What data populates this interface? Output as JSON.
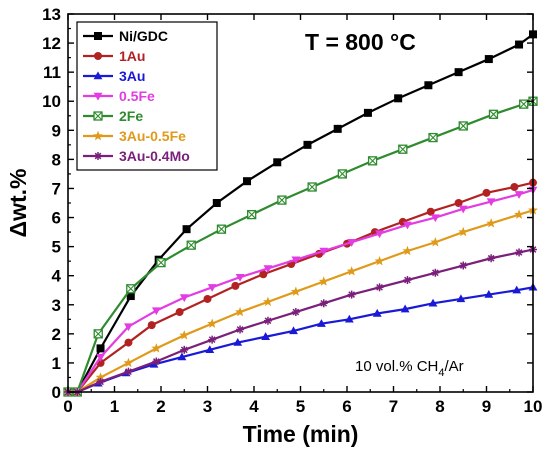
{
  "chart_data": {
    "type": "line",
    "title": "",
    "xlabel": "Time (min)",
    "ylabel": "Δwt.%",
    "xlim": [
      0,
      10
    ],
    "ylim": [
      0,
      13
    ],
    "xticks": [
      "0",
      "1",
      "2",
      "3",
      "4",
      "5",
      "6",
      "7",
      "8",
      "9",
      "10"
    ],
    "yticks": [
      "0",
      "1",
      "2",
      "3",
      "4",
      "5",
      "6",
      "7",
      "8",
      "9",
      "10",
      "11",
      "12",
      "13"
    ],
    "grid": false,
    "legend_position": "top-left",
    "annotations": {
      "temperature": "T = 800 °C",
      "gas_prefix": "10 vol.% CH",
      "gas_subscript": "4",
      "gas_suffix": "/Ar"
    },
    "series": [
      {
        "name": "Ni/GDC",
        "color": "#000000",
        "marker": "square",
        "x": [
          0,
          0.2,
          0.7,
          1.35,
          1.95,
          2.55,
          3.2,
          3.85,
          4.5,
          5.15,
          5.8,
          6.45,
          7.1,
          7.75,
          8.4,
          9.05,
          9.7,
          10.0
        ],
        "y": [
          0,
          0,
          1.5,
          3.3,
          4.55,
          5.6,
          6.5,
          7.25,
          7.9,
          8.5,
          9.05,
          9.6,
          10.1,
          10.55,
          11.0,
          11.45,
          11.95,
          12.3
        ]
      },
      {
        "name": "1Au",
        "color": "#b22222",
        "marker": "circle",
        "x": [
          0,
          0.2,
          0.7,
          1.3,
          1.8,
          2.4,
          3.0,
          3.6,
          4.2,
          4.8,
          5.4,
          6.0,
          6.6,
          7.2,
          7.8,
          8.4,
          9.0,
          9.6,
          10.0
        ],
        "y": [
          0,
          0,
          1.0,
          1.7,
          2.3,
          2.75,
          3.2,
          3.65,
          4.05,
          4.4,
          4.75,
          5.1,
          5.5,
          5.85,
          6.2,
          6.5,
          6.85,
          7.05,
          7.2
        ]
      },
      {
        "name": "3Au",
        "color": "#1a1ad6",
        "marker": "triangle-up",
        "x": [
          0,
          0.2,
          0.65,
          1.25,
          1.85,
          2.45,
          3.05,
          3.65,
          4.25,
          4.85,
          5.45,
          6.05,
          6.65,
          7.25,
          7.85,
          8.45,
          9.05,
          9.65,
          10.0
        ],
        "y": [
          0,
          0,
          0.3,
          0.65,
          0.95,
          1.2,
          1.45,
          1.7,
          1.9,
          2.1,
          2.35,
          2.5,
          2.7,
          2.85,
          3.05,
          3.2,
          3.35,
          3.5,
          3.6
        ]
      },
      {
        "name": "0.5Fe",
        "color": "#e23ce2",
        "marker": "triangle-down",
        "x": [
          0,
          0.2,
          0.7,
          1.3,
          1.9,
          2.5,
          3.1,
          3.7,
          4.3,
          4.9,
          5.5,
          6.1,
          6.7,
          7.3,
          7.9,
          8.5,
          9.1,
          9.7,
          10.0
        ],
        "y": [
          0,
          0,
          1.2,
          2.25,
          2.8,
          3.25,
          3.6,
          3.95,
          4.25,
          4.55,
          4.85,
          5.15,
          5.45,
          5.75,
          6.0,
          6.3,
          6.55,
          6.8,
          6.95
        ]
      },
      {
        "name": "2Fe",
        "color": "#2e8b2e",
        "marker": "square-x",
        "x": [
          0,
          0.2,
          0.65,
          1.35,
          2.0,
          2.65,
          3.3,
          3.95,
          4.6,
          5.25,
          5.9,
          6.55,
          7.2,
          7.85,
          8.5,
          9.15,
          9.8,
          10.0
        ],
        "y": [
          0,
          0,
          2.0,
          3.55,
          4.45,
          5.05,
          5.6,
          6.1,
          6.6,
          7.05,
          7.5,
          7.95,
          8.35,
          8.75,
          9.15,
          9.55,
          9.9,
          10.0
        ]
      },
      {
        "name": "3Au-0.5Fe",
        "color": "#e09a1a",
        "marker": "star",
        "x": [
          0,
          0.2,
          0.7,
          1.3,
          1.9,
          2.5,
          3.1,
          3.7,
          4.3,
          4.9,
          5.5,
          6.1,
          6.7,
          7.3,
          7.9,
          8.5,
          9.1,
          9.7,
          10.0
        ],
        "y": [
          0,
          0,
          0.5,
          1.0,
          1.5,
          1.95,
          2.35,
          2.75,
          3.1,
          3.45,
          3.8,
          4.15,
          4.5,
          4.85,
          5.15,
          5.5,
          5.8,
          6.1,
          6.25
        ]
      },
      {
        "name": "3Au-0.4Mo",
        "color": "#7a1f7a",
        "marker": "asterisk",
        "x": [
          0,
          0.2,
          0.7,
          1.3,
          1.9,
          2.5,
          3.1,
          3.7,
          4.3,
          4.9,
          5.5,
          6.1,
          6.7,
          7.3,
          7.9,
          8.5,
          9.1,
          9.7,
          10.0
        ],
        "y": [
          0,
          0,
          0.35,
          0.7,
          1.05,
          1.45,
          1.8,
          2.15,
          2.45,
          2.75,
          3.05,
          3.35,
          3.6,
          3.85,
          4.1,
          4.35,
          4.6,
          4.8,
          4.9
        ]
      }
    ]
  }
}
